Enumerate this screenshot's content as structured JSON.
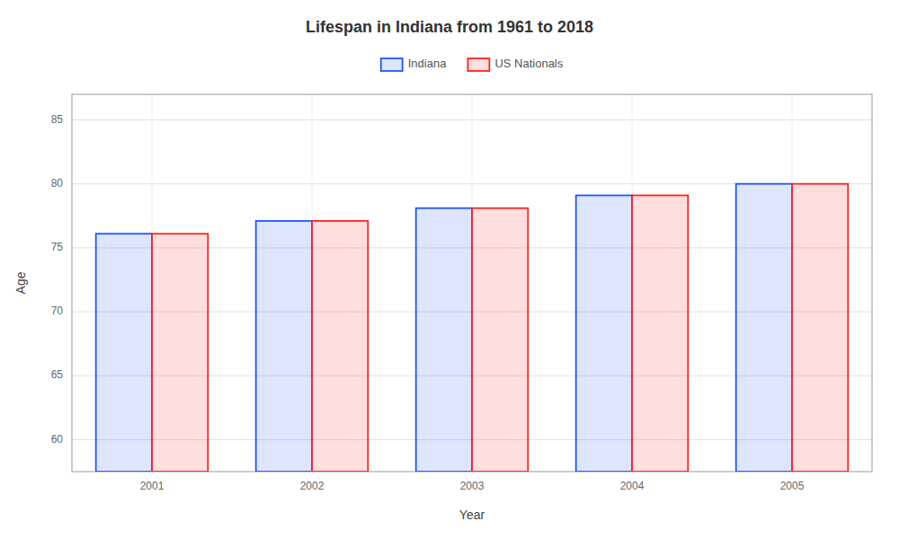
{
  "chart_data": {
    "type": "bar",
    "title": "Lifespan in Indiana from 1961 to 2018",
    "x_label": "Year",
    "y_label": "Age",
    "categories": [
      "2001",
      "2002",
      "2003",
      "2004",
      "2005"
    ],
    "series": [
      {
        "name": "Indiana",
        "color": "#2255ff",
        "values": [
          76.1,
          77.1,
          78.1,
          79.1,
          80.0
        ]
      },
      {
        "name": "US Nationals",
        "color": "#ff2222",
        "values": [
          76.1,
          77.1,
          78.1,
          79.1,
          80.0
        ]
      }
    ],
    "ylim": [
      57.5,
      87
    ],
    "yticks": [
      60,
      65,
      70,
      75,
      80,
      85
    ],
    "grid": true,
    "legend": "top"
  }
}
